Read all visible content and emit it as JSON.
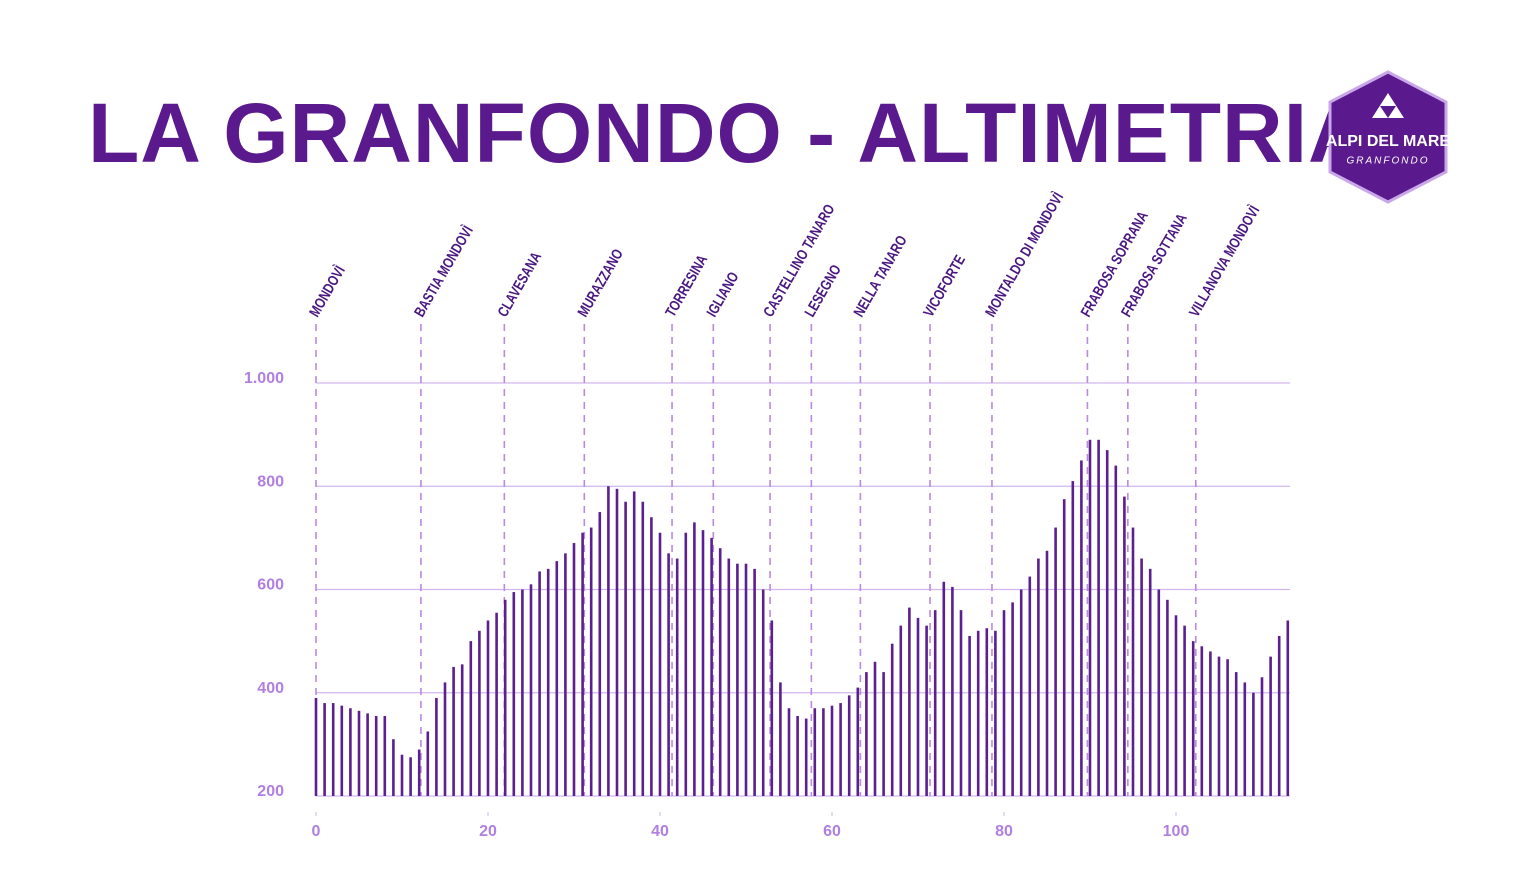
{
  "chart_data": {
    "type": "bar",
    "title": "LA GRANFONDO - ALTIMETRIA",
    "logo": {
      "title": "ALPI DEL MARE",
      "subtitle": "GRANFONDO"
    },
    "color": "#5b1f8f",
    "grid": true,
    "xlim": [
      -1,
      114
    ],
    "xticks": [
      0,
      20,
      40,
      60,
      80,
      100
    ],
    "ylim": [
      200,
      1000
    ],
    "yticks": [
      200,
      400,
      600,
      800,
      {
        "value": 1000,
        "label": "1.000"
      }
    ],
    "x": [
      0,
      1,
      2,
      3,
      4,
      5,
      6,
      7,
      8,
      9,
      10,
      11,
      12,
      13,
      14,
      15,
      16,
      17,
      18,
      19,
      20,
      21,
      22,
      23,
      24,
      25,
      26,
      27,
      28,
      29,
      30,
      31,
      32,
      33,
      34,
      35,
      36,
      37,
      38,
      39,
      40,
      41,
      42,
      43,
      44,
      45,
      46,
      47,
      48,
      49,
      50,
      51,
      52,
      53,
      54,
      55,
      56,
      57,
      58,
      59,
      60,
      61,
      62,
      63,
      64,
      65,
      66,
      67,
      68,
      69,
      70,
      71,
      72,
      73,
      74,
      75,
      76,
      77,
      78,
      79,
      80,
      81,
      82,
      83,
      84,
      85,
      86,
      87,
      88,
      89,
      90,
      91,
      92,
      93,
      94,
      95,
      96,
      97,
      98,
      99,
      100,
      101,
      102,
      103,
      104,
      105,
      106,
      107,
      108,
      109,
      110,
      111,
      112,
      113
    ],
    "values": [
      390,
      380,
      380,
      375,
      370,
      365,
      360,
      355,
      355,
      310,
      280,
      275,
      290,
      325,
      390,
      420,
      450,
      455,
      500,
      520,
      540,
      555,
      580,
      595,
      600,
      610,
      635,
      640,
      655,
      670,
      690,
      710,
      720,
      750,
      800,
      795,
      770,
      790,
      770,
      740,
      710,
      670,
      660,
      710,
      730,
      715,
      700,
      680,
      660,
      650,
      650,
      640,
      600,
      540,
      420,
      370,
      355,
      350,
      370,
      370,
      375,
      380,
      395,
      410,
      440,
      460,
      440,
      495,
      530,
      565,
      545,
      530,
      560,
      615,
      605,
      560,
      510,
      520,
      525,
      520,
      560,
      575,
      600,
      625,
      660,
      675,
      720,
      775,
      810,
      850,
      890,
      890,
      870,
      840,
      780,
      720,
      660,
      640,
      600,
      580,
      550,
      530,
      500,
      490,
      480,
      470,
      465,
      440,
      420,
      400,
      430,
      470,
      510,
      540
    ],
    "annotations": [
      {
        "label": "MONDOVÌ",
        "x": 0
      },
      {
        "label": "BASTIA MONDOVÌ",
        "x": 12.2
      },
      {
        "label": "CLAVESANA",
        "x": 21.9
      },
      {
        "label": "MURAZZANO",
        "x": 31.2
      },
      {
        "label": "TORRESINA",
        "x": 41.4
      },
      {
        "label": "IGLIANO",
        "x": 46.2
      },
      {
        "label": "CASTELLINO TANARO",
        "x": 52.8
      },
      {
        "label": "LESEGNO",
        "x": 57.6
      },
      {
        "label": "NELLA TANARO",
        "x": 63.3
      },
      {
        "label": "VICOFORTE",
        "x": 71.4
      },
      {
        "label": "MONTALDO DI MONDOVÌ",
        "x": 78.6
      },
      {
        "label": "FRABOSA SOPRANA",
        "x": 89.7
      },
      {
        "label": "FRABOSA SOTTANA",
        "x": 94.4
      },
      {
        "label": "VILLANOVA MONDOVÌ",
        "x": 102.3
      }
    ]
  }
}
